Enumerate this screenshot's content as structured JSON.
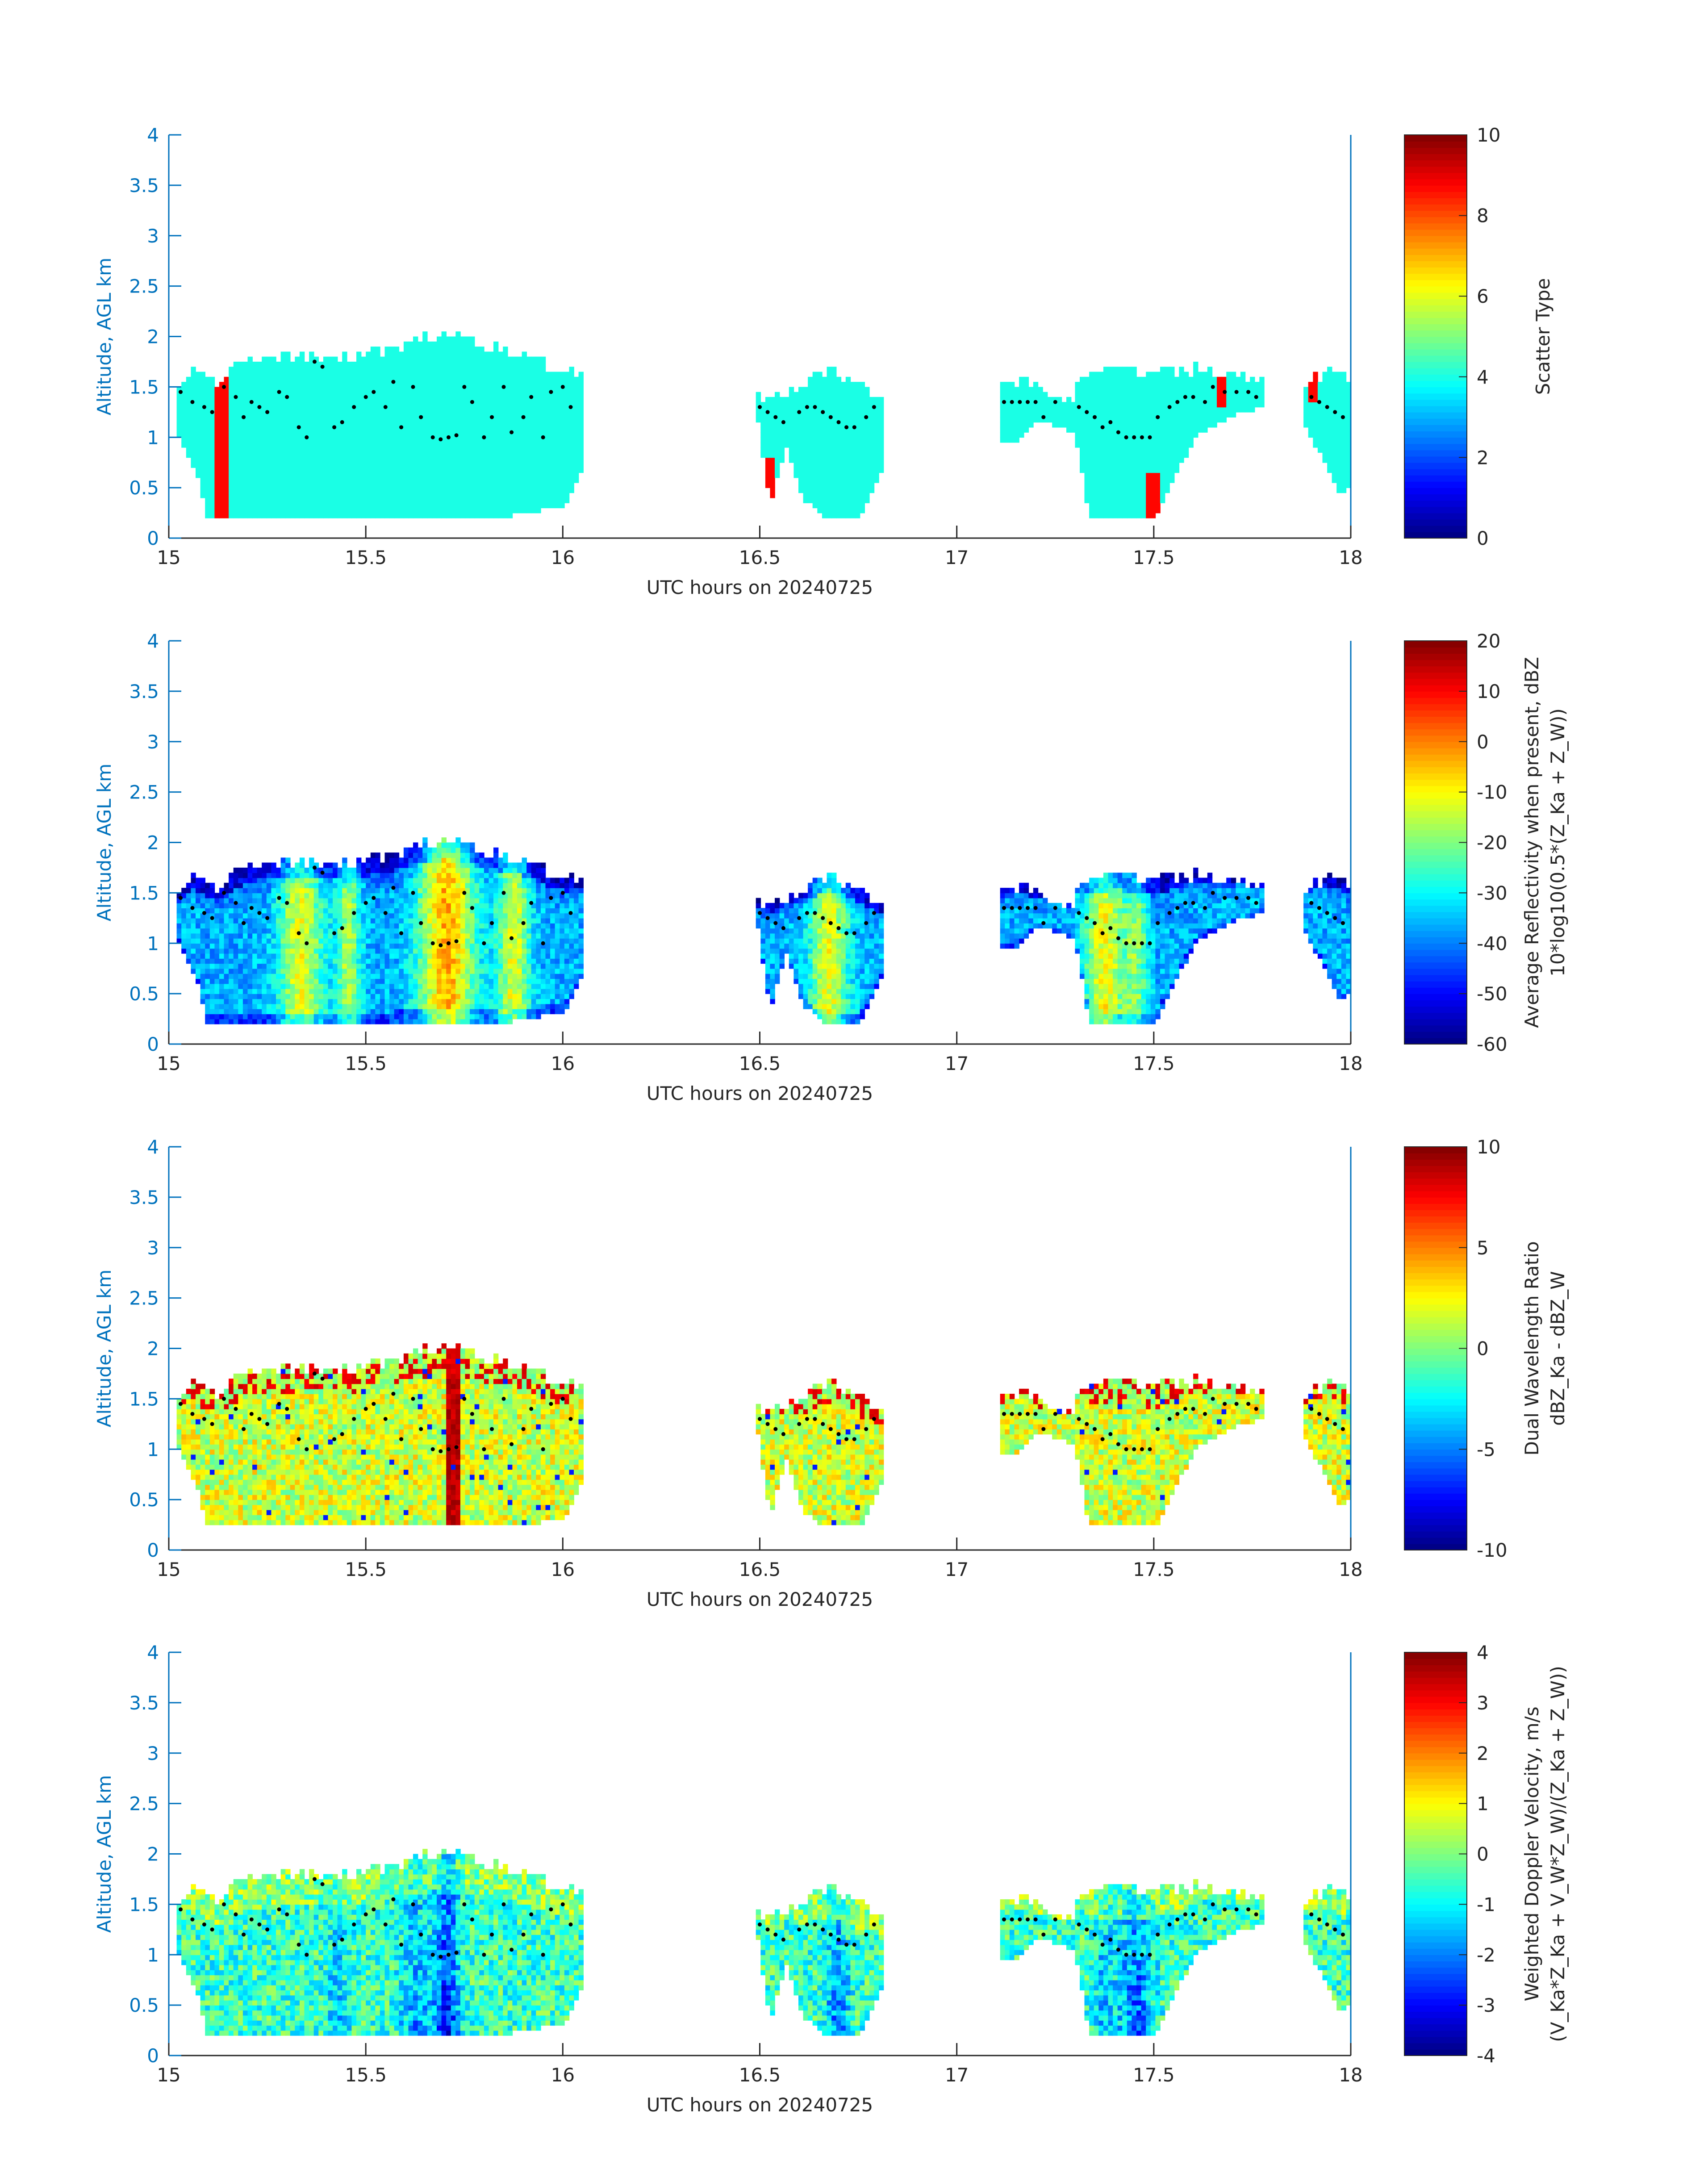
{
  "chart_data": [
    {
      "type": "heatmap",
      "xlabel": "UTC hours on 20240725",
      "ylabel": "Altitude, AGL km",
      "xlim": [
        15,
        18
      ],
      "ylim": [
        0,
        4
      ],
      "x_ticks": [
        "15",
        "15.5",
        "16",
        "16.5",
        "17",
        "17.5",
        "18"
      ],
      "y_ticks": [
        "0",
        "0.5",
        "1",
        "1.5",
        "2",
        "2.5",
        "3",
        "3.5",
        "4"
      ],
      "colorbar": {
        "label_lines": [
          "Scatter Type"
        ],
        "range": [
          0,
          10
        ],
        "ticks": [
          "0",
          "2",
          "4",
          "6",
          "8",
          "10"
        ],
        "colormap": "jet"
      },
      "field": "scatter-type"
    },
    {
      "type": "heatmap",
      "xlabel": "UTC hours on 20240725",
      "ylabel": "Altitude, AGL km",
      "xlim": [
        15,
        18
      ],
      "ylim": [
        0,
        4
      ],
      "x_ticks": [
        "15",
        "15.5",
        "16",
        "16.5",
        "17",
        "17.5",
        "18"
      ],
      "y_ticks": [
        "0",
        "0.5",
        "1",
        "1.5",
        "2",
        "2.5",
        "3",
        "3.5",
        "4"
      ],
      "colorbar": {
        "label_lines": [
          "Average Reflectivity when present, dBZ",
          "10*log10(0.5*(Z_Ka + Z_W))"
        ],
        "range": [
          -60,
          20
        ],
        "ticks": [
          "-60",
          "-50",
          "-40",
          "-30",
          "-20",
          "-10",
          "0",
          "10",
          "20"
        ],
        "colormap": "jet"
      },
      "field": "reflectivity"
    },
    {
      "type": "heatmap",
      "xlabel": "UTC hours on 20240725",
      "ylabel": "Altitude, AGL km",
      "xlim": [
        15,
        18
      ],
      "ylim": [
        0,
        4
      ],
      "x_ticks": [
        "15",
        "15.5",
        "16",
        "16.5",
        "17",
        "17.5",
        "18"
      ],
      "y_ticks": [
        "0",
        "0.5",
        "1",
        "1.5",
        "2",
        "2.5",
        "3",
        "3.5",
        "4"
      ],
      "colorbar": {
        "label_lines": [
          "Dual Wavelength Ratio",
          "dBZ_Ka - dBZ_W"
        ],
        "range": [
          -10,
          10
        ],
        "ticks": [
          "-10",
          "-5",
          "0",
          "5",
          "10"
        ],
        "colormap": "jet"
      },
      "field": "dwr"
    },
    {
      "type": "heatmap",
      "xlabel": "UTC hours on 20240725",
      "ylabel": "Altitude, AGL km",
      "xlim": [
        15,
        18
      ],
      "ylim": [
        0,
        4
      ],
      "x_ticks": [
        "15",
        "15.5",
        "16",
        "16.5",
        "17",
        "17.5",
        "18"
      ],
      "y_ticks": [
        "0",
        "0.5",
        "1",
        "1.5",
        "2",
        "2.5",
        "3",
        "3.5",
        "4"
      ],
      "colorbar": {
        "label_lines": [
          "Weighted Doppler Velocity, m/s",
          "(V_Ka*Z_Ka + V_W*Z_W)/(Z_Ka + Z_W))"
        ],
        "range": [
          -4,
          4
        ],
        "ticks": [
          "-4",
          "-3",
          "-2",
          "-1",
          "0",
          "1",
          "2",
          "3",
          "4"
        ],
        "colormap": "jet"
      },
      "field": "velocity"
    }
  ],
  "cloud_segments": [
    {
      "t0": 15.02,
      "t1": 16.05,
      "bases": [
        [
          15.02,
          1.0
        ],
        [
          15.07,
          0.55
        ],
        [
          15.09,
          0.2
        ],
        [
          15.55,
          0.2
        ],
        [
          15.72,
          0.2
        ],
        [
          15.85,
          0.2
        ],
        [
          16.0,
          0.3
        ],
        [
          16.05,
          0.7
        ]
      ],
      "tops": [
        [
          15.02,
          1.45
        ],
        [
          15.05,
          1.6
        ],
        [
          15.12,
          1.55
        ],
        [
          15.2,
          1.75
        ],
        [
          15.35,
          1.8
        ],
        [
          15.45,
          1.75
        ],
        [
          15.55,
          1.85
        ],
        [
          15.65,
          1.95
        ],
        [
          15.72,
          2.0
        ],
        [
          15.8,
          1.9
        ],
        [
          15.9,
          1.8
        ],
        [
          15.97,
          1.65
        ],
        [
          16.05,
          1.6
        ]
      ]
    },
    {
      "t0": 16.49,
      "t1": 16.81,
      "bases": [
        [
          16.49,
          1.15
        ],
        [
          16.52,
          0.3
        ],
        [
          16.56,
          0.9
        ],
        [
          16.6,
          0.4
        ],
        [
          16.65,
          0.2
        ],
        [
          16.75,
          0.2
        ],
        [
          16.81,
          0.7
        ]
      ],
      "tops": [
        [
          16.49,
          1.35
        ],
        [
          16.55,
          1.4
        ],
        [
          16.6,
          1.5
        ],
        [
          16.67,
          1.65
        ],
        [
          16.73,
          1.55
        ],
        [
          16.81,
          1.3
        ]
      ]
    },
    {
      "t0": 17.11,
      "t1": 17.3,
      "bases": [
        [
          17.11,
          0.95
        ],
        [
          17.15,
          0.95
        ],
        [
          17.2,
          1.15
        ],
        [
          17.25,
          1.1
        ],
        [
          17.3,
          1.0
        ]
      ],
      "tops": [
        [
          17.11,
          1.5
        ],
        [
          17.15,
          1.55
        ],
        [
          17.2,
          1.45
        ],
        [
          17.25,
          1.4
        ],
        [
          17.3,
          1.35
        ]
      ]
    },
    {
      "t0": 17.3,
      "t1": 17.78,
      "bases": [
        [
          17.3,
          0.9
        ],
        [
          17.33,
          0.2
        ],
        [
          17.5,
          0.2
        ],
        [
          17.55,
          0.6
        ],
        [
          17.6,
          1.0
        ],
        [
          17.7,
          1.2
        ],
        [
          17.78,
          1.3
        ]
      ],
      "tops": [
        [
          17.3,
          1.6
        ],
        [
          17.4,
          1.65
        ],
        [
          17.5,
          1.6
        ],
        [
          17.6,
          1.65
        ],
        [
          17.7,
          1.6
        ],
        [
          17.78,
          1.55
        ]
      ]
    },
    {
      "t0": 17.88,
      "t1": 18.0,
      "bases": [
        [
          17.88,
          1.1
        ],
        [
          17.93,
          0.7
        ],
        [
          17.97,
          0.4
        ],
        [
          18.0,
          0.5
        ]
      ],
      "tops": [
        [
          17.88,
          1.5
        ],
        [
          17.93,
          1.65
        ],
        [
          18.0,
          1.6
        ]
      ]
    }
  ],
  "cloud_base_dots": [
    [
      15.03,
      1.45
    ],
    [
      15.06,
      1.35
    ],
    [
      15.09,
      1.3
    ],
    [
      15.11,
      1.25
    ],
    [
      15.14,
      1.5
    ],
    [
      15.17,
      1.4
    ],
    [
      15.19,
      1.2
    ],
    [
      15.21,
      1.35
    ],
    [
      15.23,
      1.3
    ],
    [
      15.25,
      1.25
    ],
    [
      15.28,
      1.45
    ],
    [
      15.3,
      1.4
    ],
    [
      15.33,
      1.1
    ],
    [
      15.35,
      1.0
    ],
    [
      15.37,
      1.75
    ],
    [
      15.39,
      1.7
    ],
    [
      15.42,
      1.1
    ],
    [
      15.44,
      1.15
    ],
    [
      15.47,
      1.3
    ],
    [
      15.5,
      1.4
    ],
    [
      15.52,
      1.45
    ],
    [
      15.55,
      1.3
    ],
    [
      15.57,
      1.55
    ],
    [
      15.59,
      1.1
    ],
    [
      15.62,
      1.5
    ],
    [
      15.64,
      1.2
    ],
    [
      15.67,
      1.0
    ],
    [
      15.69,
      0.98
    ],
    [
      15.71,
      1.0
    ],
    [
      15.73,
      1.02
    ],
    [
      15.75,
      1.5
    ],
    [
      15.77,
      1.35
    ],
    [
      15.8,
      1.0
    ],
    [
      15.82,
      1.2
    ],
    [
      15.85,
      1.5
    ],
    [
      15.87,
      1.05
    ],
    [
      15.9,
      1.2
    ],
    [
      15.92,
      1.4
    ],
    [
      15.95,
      1.0
    ],
    [
      15.97,
      1.45
    ],
    [
      16.0,
      1.5
    ],
    [
      16.02,
      1.3
    ],
    [
      16.5,
      1.3
    ],
    [
      16.52,
      1.25
    ],
    [
      16.54,
      1.2
    ],
    [
      16.56,
      1.15
    ],
    [
      16.6,
      1.25
    ],
    [
      16.62,
      1.3
    ],
    [
      16.64,
      1.3
    ],
    [
      16.66,
      1.25
    ],
    [
      16.68,
      1.2
    ],
    [
      16.7,
      1.15
    ],
    [
      16.72,
      1.1
    ],
    [
      16.74,
      1.1
    ],
    [
      16.77,
      1.2
    ],
    [
      16.79,
      1.3
    ],
    [
      17.12,
      1.35
    ],
    [
      17.14,
      1.35
    ],
    [
      17.16,
      1.35
    ],
    [
      17.18,
      1.35
    ],
    [
      17.2,
      1.35
    ],
    [
      17.22,
      1.2
    ],
    [
      17.25,
      1.35
    ],
    [
      17.31,
      1.3
    ],
    [
      17.33,
      1.25
    ],
    [
      17.35,
      1.2
    ],
    [
      17.37,
      1.1
    ],
    [
      17.39,
      1.15
    ],
    [
      17.41,
      1.05
    ],
    [
      17.43,
      1.0
    ],
    [
      17.45,
      1.0
    ],
    [
      17.47,
      1.0
    ],
    [
      17.49,
      1.0
    ],
    [
      17.51,
      1.2
    ],
    [
      17.54,
      1.3
    ],
    [
      17.56,
      1.35
    ],
    [
      17.58,
      1.4
    ],
    [
      17.6,
      1.4
    ],
    [
      17.63,
      1.35
    ],
    [
      17.65,
      1.5
    ],
    [
      17.68,
      1.45
    ],
    [
      17.71,
      1.45
    ],
    [
      17.74,
      1.45
    ],
    [
      17.76,
      1.4
    ],
    [
      17.9,
      1.4
    ],
    [
      17.92,
      1.35
    ],
    [
      17.94,
      1.3
    ],
    [
      17.96,
      1.25
    ],
    [
      17.98,
      1.2
    ]
  ]
}
